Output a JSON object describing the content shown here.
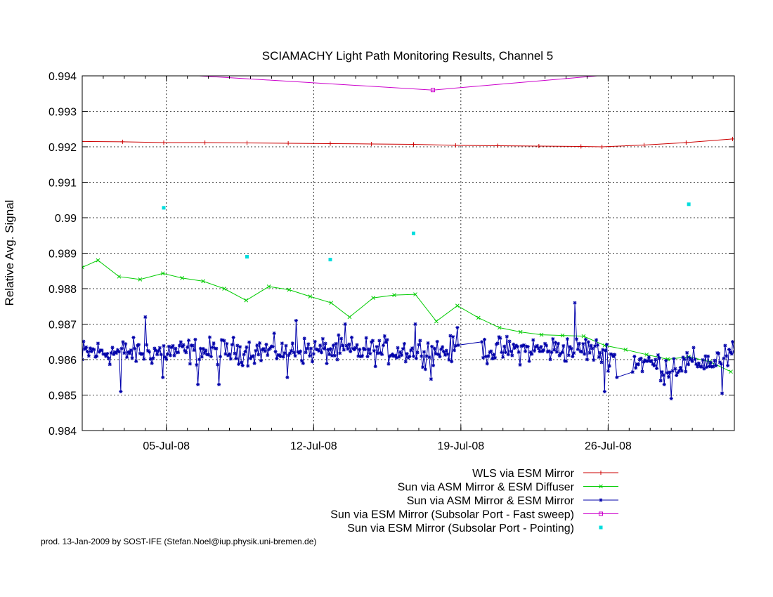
{
  "chart_data": {
    "type": "line",
    "title": "SCIAMACHY Light Path Monitoring Results, Channel 5",
    "xlabel": "",
    "ylabel": "Relative Avg. Signal",
    "x_axis": {
      "type": "date",
      "min": "2008-07-01",
      "max": "2008-08-01"
    },
    "ylim": [
      0.984,
      0.994
    ],
    "xticks": [
      {
        "date": "2008-07-05",
        "label": "05-Jul-08"
      },
      {
        "date": "2008-07-12",
        "label": "12-Jul-08"
      },
      {
        "date": "2008-07-19",
        "label": "19-Jul-08"
      },
      {
        "date": "2008-07-26",
        "label": "26-Jul-08"
      }
    ],
    "yticks": [
      {
        "value": 0.984,
        "label": "0.984"
      },
      {
        "value": 0.985,
        "label": "0.985"
      },
      {
        "value": 0.986,
        "label": "0.986"
      },
      {
        "value": 0.987,
        "label": "0.987"
      },
      {
        "value": 0.988,
        "label": "0.988"
      },
      {
        "value": 0.989,
        "label": "0.989"
      },
      {
        "value": 0.99,
        "label": "0.99"
      },
      {
        "value": 0.991,
        "label": "0.991"
      },
      {
        "value": 0.992,
        "label": "0.992"
      },
      {
        "value": 0.993,
        "label": "0.993"
      },
      {
        "value": 0.994,
        "label": "0.994"
      }
    ],
    "grid": true,
    "legend_position": "bottom-right",
    "series": [
      {
        "name": "WLS via ESM Mirror",
        "color": "#cc0000",
        "style": "line-points",
        "marker": "plus",
        "points": [
          [
            "2008-07-01T00:00",
            0.99215
          ],
          [
            "2008-07-02T22:00",
            0.99214
          ],
          [
            "2008-07-04T21:00",
            0.99212
          ],
          [
            "2008-07-06T20:00",
            0.99212
          ],
          [
            "2008-07-08T20:00",
            0.99211
          ],
          [
            "2008-07-10T19:00",
            0.9921
          ],
          [
            "2008-07-12T19:00",
            0.99209
          ],
          [
            "2008-07-14T18:00",
            0.99208
          ],
          [
            "2008-07-16T18:00",
            0.99207
          ],
          [
            "2008-07-18T18:00",
            0.99204
          ],
          [
            "2008-07-20T18:00",
            0.99203
          ],
          [
            "2008-07-22T17:00",
            0.99202
          ],
          [
            "2008-07-24T17:00",
            0.99201
          ],
          [
            "2008-07-25T17:00",
            0.992
          ],
          [
            "2008-07-27T17:00",
            0.99205
          ],
          [
            "2008-07-29T17:00",
            0.99212
          ],
          [
            "2008-07-31T22:00",
            0.99222
          ]
        ]
      },
      {
        "name": "Sun via ASM Mirror & ESM Diffuser",
        "color": "#00cc00",
        "style": "line-points",
        "marker": "x",
        "points": [
          [
            "2008-07-01T00:00",
            0.9886
          ],
          [
            "2008-07-01T18:00",
            0.9888
          ],
          [
            "2008-07-02T18:00",
            0.98834
          ],
          [
            "2008-07-03T18:00",
            0.98826
          ],
          [
            "2008-07-04T20:00",
            0.98843
          ],
          [
            "2008-07-05T18:00",
            0.9883
          ],
          [
            "2008-07-06T18:00",
            0.98821
          ],
          [
            "2008-07-07T18:00",
            0.988
          ],
          [
            "2008-07-08T19:00",
            0.98767
          ],
          [
            "2008-07-09T21:00",
            0.98806
          ],
          [
            "2008-07-10T20:00",
            0.98797
          ],
          [
            "2008-07-11T20:00",
            0.98778
          ],
          [
            "2008-07-12T20:00",
            0.9876
          ],
          [
            "2008-07-13T17:00",
            0.9872
          ],
          [
            "2008-07-14T20:00",
            0.98774
          ],
          [
            "2008-07-15T20:00",
            0.98782
          ],
          [
            "2008-07-16T20:00",
            0.98784
          ],
          [
            "2008-07-17T20:00",
            0.98708
          ],
          [
            "2008-07-18T20:00",
            0.98752
          ],
          [
            "2008-07-19T20:00",
            0.98718
          ],
          [
            "2008-07-20T20:00",
            0.9869
          ],
          [
            "2008-07-21T20:00",
            0.98678
          ],
          [
            "2008-07-22T20:00",
            0.9867
          ],
          [
            "2008-07-23T20:00",
            0.98668
          ],
          [
            "2008-07-24T20:00",
            0.98666
          ],
          [
            "2008-07-25T20:00",
            0.9864
          ],
          [
            "2008-07-26T20:00",
            0.98628
          ],
          [
            "2008-07-27T20:00",
            0.98614
          ],
          [
            "2008-07-28T20:00",
            0.98601
          ],
          [
            "2008-07-29T20:00",
            0.98608
          ],
          [
            "2008-07-30T20:00",
            0.98594
          ],
          [
            "2008-07-31T20:00",
            0.98566
          ]
        ]
      },
      {
        "name": "Sun via ASM Mirror & ESM Mirror",
        "color": "#0000aa",
        "style": "line-points",
        "marker": "star",
        "generated": {
          "seed": 12345,
          "start": "2008-07-01T00:00",
          "end": "2008-08-01T00:00",
          "step_hours": 1.5,
          "gaps": [
            [
              "2008-07-18T22:00",
              "2008-07-20T00:00"
            ],
            [
              "2008-07-26T10:00",
              "2008-07-27T04:00"
            ]
          ],
          "baseline": [
            [
              "2008-07-01T00:00",
              0.9862
            ],
            [
              "2008-07-10T00:00",
              0.98625
            ],
            [
              "2008-07-19T00:00",
              0.98625
            ],
            [
              "2008-07-25T00:00",
              0.9863
            ],
            [
              "2008-07-27T00:00",
              0.986
            ],
            [
              "2008-07-29T00:00",
              0.9858
            ],
            [
              "2008-08-01T00:00",
              0.9861
            ]
          ],
          "noise": 0.00055,
          "fixed_points": [
            [
              "2008-07-01T00:00",
              0.986
            ],
            [
              "2008-07-01T12:00",
              0.9863
            ],
            [
              "2008-07-02T20:00",
              0.9851
            ],
            [
              "2008-07-04T00:00",
              0.9872
            ],
            [
              "2008-07-04T20:00",
              0.9855
            ],
            [
              "2008-07-06T12:00",
              0.9853
            ],
            [
              "2008-07-07T12:00",
              0.9853
            ],
            [
              "2008-07-10T18:00",
              0.9855
            ],
            [
              "2008-07-11T04:00",
              0.9871
            ],
            [
              "2008-07-13T12:00",
              0.987
            ],
            [
              "2008-07-16T20:00",
              0.987
            ],
            [
              "2008-07-17T14:00",
              0.98545
            ],
            [
              "2008-07-18T20:00",
              0.9869
            ],
            [
              "2008-07-20T00:00",
              0.9865
            ],
            [
              "2008-07-24T10:00",
              0.9876
            ],
            [
              "2008-07-25T20:00",
              0.9851
            ],
            [
              "2008-07-26T10:00",
              0.9855
            ],
            [
              "2008-07-27T04:00",
              0.98565
            ],
            [
              "2008-07-28T16:00",
              0.9853
            ],
            [
              "2008-07-29T00:00",
              0.9849
            ],
            [
              "2008-07-30T22:00",
              0.9858
            ],
            [
              "2008-07-31T10:00",
              0.98505
            ],
            [
              "2008-07-31T22:00",
              0.9865
            ]
          ]
        }
      },
      {
        "name": "Sun via ESM Mirror (Subsolar Port - Fast sweep)",
        "color": "#cc00cc",
        "style": "line-points",
        "marker": "square",
        "points": [
          [
            "2008-07-01T00:00",
            0.9942
          ],
          [
            "2008-07-17T16:00",
            0.9936
          ],
          [
            "2008-07-25T21:00",
            0.99402
          ],
          [
            "2008-08-01T00:00",
            0.9943
          ]
        ],
        "visible_markers": [
          [
            "2008-07-17T16:00",
            0.9936
          ]
        ]
      },
      {
        "name": "Sun via ESM Mirror (Subsolar Port - Pointing)",
        "color": "#00dddd",
        "style": "points",
        "marker": "dot",
        "points": [
          [
            "2008-07-04T21:00",
            0.99028
          ],
          [
            "2008-07-08T20:00",
            0.9889
          ],
          [
            "2008-07-12T19:00",
            0.98882
          ],
          [
            "2008-07-16T18:00",
            0.98956
          ],
          [
            "2008-07-29T20:00",
            0.99038
          ]
        ]
      }
    ]
  },
  "footer": "prod. 13-Jan-2009 by SOST-IFE (Stefan.Noel@iup.physik.uni-bremen.de)"
}
